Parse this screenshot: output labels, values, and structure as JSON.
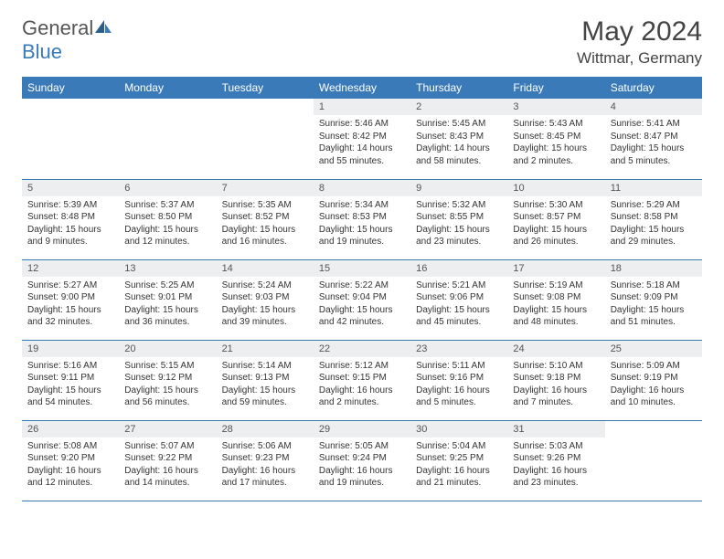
{
  "brand": {
    "general": "General",
    "blue": "Blue"
  },
  "title": "May 2024",
  "location": "Wittmar, Germany",
  "colors": {
    "header_bg": "#3a7ab8",
    "header_text": "#ffffff",
    "daynum_bg": "#eceef0",
    "border": "#3a7ab8",
    "body_bg": "#ffffff"
  },
  "columns": [
    "Sunday",
    "Monday",
    "Tuesday",
    "Wednesday",
    "Thursday",
    "Friday",
    "Saturday"
  ],
  "weeks": [
    [
      {
        "empty": true
      },
      {
        "empty": true
      },
      {
        "empty": true
      },
      {
        "n": "1",
        "sunrise": "5:46 AM",
        "sunset": "8:42 PM",
        "daylight": "14 hours and 55 minutes."
      },
      {
        "n": "2",
        "sunrise": "5:45 AM",
        "sunset": "8:43 PM",
        "daylight": "14 hours and 58 minutes."
      },
      {
        "n": "3",
        "sunrise": "5:43 AM",
        "sunset": "8:45 PM",
        "daylight": "15 hours and 2 minutes."
      },
      {
        "n": "4",
        "sunrise": "5:41 AM",
        "sunset": "8:47 PM",
        "daylight": "15 hours and 5 minutes."
      }
    ],
    [
      {
        "n": "5",
        "sunrise": "5:39 AM",
        "sunset": "8:48 PM",
        "daylight": "15 hours and 9 minutes."
      },
      {
        "n": "6",
        "sunrise": "5:37 AM",
        "sunset": "8:50 PM",
        "daylight": "15 hours and 12 minutes."
      },
      {
        "n": "7",
        "sunrise": "5:35 AM",
        "sunset": "8:52 PM",
        "daylight": "15 hours and 16 minutes."
      },
      {
        "n": "8",
        "sunrise": "5:34 AM",
        "sunset": "8:53 PM",
        "daylight": "15 hours and 19 minutes."
      },
      {
        "n": "9",
        "sunrise": "5:32 AM",
        "sunset": "8:55 PM",
        "daylight": "15 hours and 23 minutes."
      },
      {
        "n": "10",
        "sunrise": "5:30 AM",
        "sunset": "8:57 PM",
        "daylight": "15 hours and 26 minutes."
      },
      {
        "n": "11",
        "sunrise": "5:29 AM",
        "sunset": "8:58 PM",
        "daylight": "15 hours and 29 minutes."
      }
    ],
    [
      {
        "n": "12",
        "sunrise": "5:27 AM",
        "sunset": "9:00 PM",
        "daylight": "15 hours and 32 minutes."
      },
      {
        "n": "13",
        "sunrise": "5:25 AM",
        "sunset": "9:01 PM",
        "daylight": "15 hours and 36 minutes."
      },
      {
        "n": "14",
        "sunrise": "5:24 AM",
        "sunset": "9:03 PM",
        "daylight": "15 hours and 39 minutes."
      },
      {
        "n": "15",
        "sunrise": "5:22 AM",
        "sunset": "9:04 PM",
        "daylight": "15 hours and 42 minutes."
      },
      {
        "n": "16",
        "sunrise": "5:21 AM",
        "sunset": "9:06 PM",
        "daylight": "15 hours and 45 minutes."
      },
      {
        "n": "17",
        "sunrise": "5:19 AM",
        "sunset": "9:08 PM",
        "daylight": "15 hours and 48 minutes."
      },
      {
        "n": "18",
        "sunrise": "5:18 AM",
        "sunset": "9:09 PM",
        "daylight": "15 hours and 51 minutes."
      }
    ],
    [
      {
        "n": "19",
        "sunrise": "5:16 AM",
        "sunset": "9:11 PM",
        "daylight": "15 hours and 54 minutes."
      },
      {
        "n": "20",
        "sunrise": "5:15 AM",
        "sunset": "9:12 PM",
        "daylight": "15 hours and 56 minutes."
      },
      {
        "n": "21",
        "sunrise": "5:14 AM",
        "sunset": "9:13 PM",
        "daylight": "15 hours and 59 minutes."
      },
      {
        "n": "22",
        "sunrise": "5:12 AM",
        "sunset": "9:15 PM",
        "daylight": "16 hours and 2 minutes."
      },
      {
        "n": "23",
        "sunrise": "5:11 AM",
        "sunset": "9:16 PM",
        "daylight": "16 hours and 5 minutes."
      },
      {
        "n": "24",
        "sunrise": "5:10 AM",
        "sunset": "9:18 PM",
        "daylight": "16 hours and 7 minutes."
      },
      {
        "n": "25",
        "sunrise": "5:09 AM",
        "sunset": "9:19 PM",
        "daylight": "16 hours and 10 minutes."
      }
    ],
    [
      {
        "n": "26",
        "sunrise": "5:08 AM",
        "sunset": "9:20 PM",
        "daylight": "16 hours and 12 minutes."
      },
      {
        "n": "27",
        "sunrise": "5:07 AM",
        "sunset": "9:22 PM",
        "daylight": "16 hours and 14 minutes."
      },
      {
        "n": "28",
        "sunrise": "5:06 AM",
        "sunset": "9:23 PM",
        "daylight": "16 hours and 17 minutes."
      },
      {
        "n": "29",
        "sunrise": "5:05 AM",
        "sunset": "9:24 PM",
        "daylight": "16 hours and 19 minutes."
      },
      {
        "n": "30",
        "sunrise": "5:04 AM",
        "sunset": "9:25 PM",
        "daylight": "16 hours and 21 minutes."
      },
      {
        "n": "31",
        "sunrise": "5:03 AM",
        "sunset": "9:26 PM",
        "daylight": "16 hours and 23 minutes."
      },
      {
        "empty": true
      }
    ]
  ],
  "labels": {
    "sunrise": "Sunrise: ",
    "sunset": "Sunset: ",
    "daylight": "Daylight: "
  }
}
